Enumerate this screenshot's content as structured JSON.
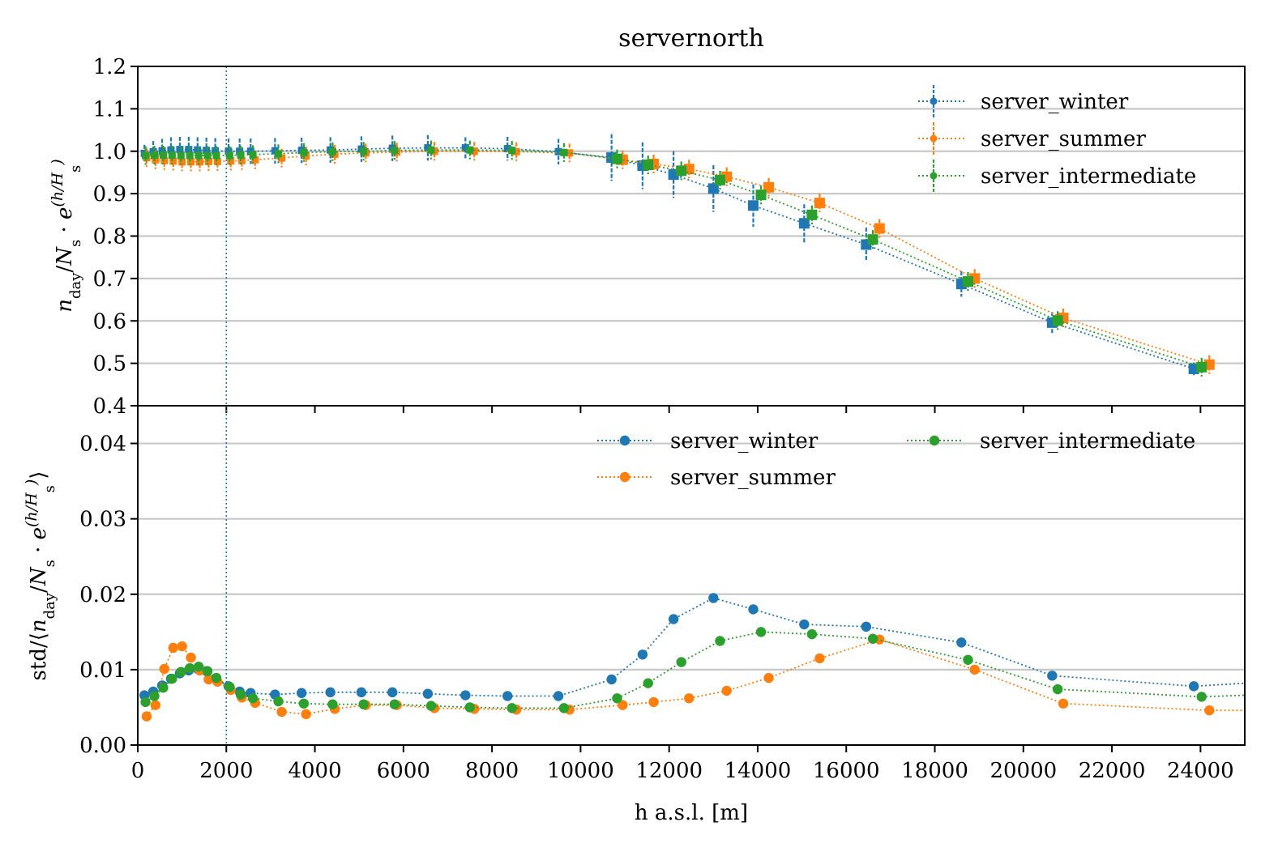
{
  "chart_data": [
    {
      "type": "line",
      "title": "servernorth",
      "xlabel": "",
      "ylabel": "n_day / N_s · e^(h/H_s)",
      "xlim": [
        0,
        25000
      ],
      "ylim": [
        0.4,
        1.2
      ],
      "yticks": [
        "0.4",
        "0.5",
        "0.6",
        "0.7",
        "0.8",
        "0.9",
        "1.0",
        "1.1",
        "1.2"
      ],
      "grid": "horizontal",
      "legend_position": "upper right, single column",
      "vline_x": 2000,
      "series": [
        {
          "name": "server_winter",
          "color": "#1f77b4",
          "x": [
            150,
            350,
            550,
            750,
            950,
            1150,
            1350,
            1550,
            1750,
            2050,
            2300,
            2550,
            3100,
            3700,
            4350,
            5050,
            5750,
            6550,
            7400,
            8350,
            9500,
            10700,
            11400,
            12100,
            13000,
            13900,
            15050,
            16450,
            18600,
            20650,
            23850
          ],
          "y": [
            0.995,
            0.999,
            1.001,
            1.003,
            1.004,
            1.004,
            1.003,
            1.002,
            1.001,
            1.0,
            1.0,
            1.0,
            1.001,
            1.002,
            1.003,
            1.005,
            1.007,
            1.008,
            1.008,
            1.006,
            0.999,
            0.985,
            0.966,
            0.945,
            0.912,
            0.872,
            0.83,
            0.78,
            0.687,
            0.596,
            0.487
          ],
          "err": [
            0.02,
            0.025,
            0.028,
            0.03,
            0.03,
            0.03,
            0.03,
            0.03,
            0.03,
            0.03,
            0.03,
            0.03,
            0.03,
            0.03,
            0.03,
            0.03,
            0.03,
            0.03,
            0.025,
            0.028,
            0.03,
            0.055,
            0.055,
            0.055,
            0.055,
            0.05,
            0.045,
            0.04,
            0.03,
            0.025,
            0.015
          ]
        },
        {
          "name": "server_summer",
          "color": "#ff7f0e",
          "x": [
            200,
            400,
            600,
            800,
            1000,
            1200,
            1400,
            1600,
            1800,
            2100,
            2350,
            2650,
            3250,
            3800,
            4450,
            5150,
            5850,
            6700,
            7600,
            8550,
            9750,
            10950,
            11650,
            12450,
            13300,
            14250,
            15400,
            16750,
            18900,
            20900,
            24200
          ],
          "y": [
            0.985,
            0.98,
            0.978,
            0.977,
            0.975,
            0.975,
            0.975,
            0.976,
            0.976,
            0.977,
            0.978,
            0.98,
            0.984,
            0.989,
            0.993,
            0.996,
            0.998,
            1.0,
            1.0,
            0.999,
            0.996,
            0.98,
            0.97,
            0.958,
            0.94,
            0.915,
            0.878,
            0.818,
            0.7,
            0.607,
            0.497
          ]
        },
        {
          "name": "server_intermediate",
          "color": "#2ca02c",
          "x": [
            175,
            375,
            575,
            775,
            975,
            1175,
            1375,
            1575,
            1775,
            2075,
            2325,
            2600,
            3175,
            3750,
            4400,
            5100,
            5800,
            6625,
            7500,
            8450,
            9625,
            10825,
            11525,
            12275,
            13150,
            14075,
            15225,
            16600,
            18750,
            20775,
            24025
          ],
          "y": [
            0.99,
            0.991,
            0.991,
            0.991,
            0.99,
            0.99,
            0.99,
            0.99,
            0.99,
            0.99,
            0.991,
            0.992,
            0.994,
            0.997,
            0.999,
            1.0,
            1.002,
            1.003,
            1.003,
            1.002,
            0.997,
            0.982,
            0.968,
            0.954,
            0.932,
            0.897,
            0.85,
            0.792,
            0.693,
            0.601,
            0.491
          ]
        }
      ]
    },
    {
      "type": "line",
      "title": "",
      "xlabel": "h a.s.l. [m]",
      "ylabel": "std/⟨n_day / N_s · e^(h/H_s)⟩",
      "xlim": [
        0,
        25000
      ],
      "ylim": [
        0.0,
        0.045
      ],
      "xticks": [
        "0",
        "2000",
        "4000",
        "6000",
        "8000",
        "10000",
        "12000",
        "14000",
        "16000",
        "18000",
        "20000",
        "22000",
        "24000"
      ],
      "yticks": [
        "0.00",
        "0.01",
        "0.02",
        "0.03",
        "0.04"
      ],
      "grid": "horizontal",
      "legend_position": "upper right, two columns",
      "vline_x": 2000,
      "series": [
        {
          "name": "server_winter",
          "color": "#1f77b4",
          "x": [
            150,
            350,
            550,
            750,
            950,
            1150,
            1350,
            1550,
            1750,
            2050,
            2300,
            2550,
            3100,
            3700,
            4350,
            5050,
            5750,
            6550,
            7400,
            8350,
            9500,
            10700,
            11400,
            12100,
            13000,
            13900,
            15050,
            16450,
            18600,
            20650,
            23850,
            25000
          ],
          "y": [
            0.0066,
            0.0071,
            0.0079,
            0.0088,
            0.0095,
            0.0099,
            0.0101,
            0.0098,
            0.0088,
            0.0078,
            0.0071,
            0.0069,
            0.0067,
            0.0069,
            0.007,
            0.007,
            0.007,
            0.0068,
            0.0066,
            0.0065,
            0.0065,
            0.0087,
            0.012,
            0.0167,
            0.0195,
            0.018,
            0.016,
            0.0157,
            0.0136,
            0.0092,
            0.0078,
            0.0082
          ]
        },
        {
          "name": "server_summer",
          "color": "#ff7f0e",
          "x": [
            200,
            400,
            600,
            800,
            1000,
            1200,
            1400,
            1600,
            1800,
            2100,
            2350,
            2650,
            3250,
            3800,
            4450,
            5150,
            5850,
            6700,
            7600,
            8550,
            9750,
            10950,
            11650,
            12450,
            13300,
            14250,
            15400,
            16750,
            18900,
            20900,
            24200,
            25000
          ],
          "y": [
            0.0038,
            0.0053,
            0.0101,
            0.0129,
            0.0131,
            0.0116,
            0.0099,
            0.0087,
            0.0084,
            0.0073,
            0.0063,
            0.0056,
            0.0044,
            0.0041,
            0.0048,
            0.0053,
            0.0053,
            0.0049,
            0.0048,
            0.0047,
            0.0047,
            0.0053,
            0.0057,
            0.0062,
            0.0072,
            0.0089,
            0.0115,
            0.014,
            0.01,
            0.0055,
            0.0046,
            0.0046
          ]
        },
        {
          "name": "server_intermediate",
          "color": "#2ca02c",
          "x": [
            175,
            375,
            575,
            775,
            975,
            1175,
            1375,
            1575,
            1775,
            2075,
            2325,
            2600,
            3175,
            3750,
            4400,
            5100,
            5800,
            6625,
            7500,
            8450,
            9625,
            10825,
            11525,
            12275,
            13150,
            14075,
            15225,
            16600,
            18750,
            20775,
            24025,
            25000
          ],
          "y": [
            0.0057,
            0.0065,
            0.0076,
            0.0088,
            0.0097,
            0.0102,
            0.0104,
            0.0098,
            0.0089,
            0.0077,
            0.0067,
            0.0062,
            0.0058,
            0.0055,
            0.0054,
            0.0054,
            0.0054,
            0.0052,
            0.005,
            0.0049,
            0.0049,
            0.0062,
            0.0082,
            0.011,
            0.0138,
            0.015,
            0.0147,
            0.0141,
            0.0113,
            0.0074,
            0.0064,
            0.0066
          ]
        }
      ]
    }
  ]
}
